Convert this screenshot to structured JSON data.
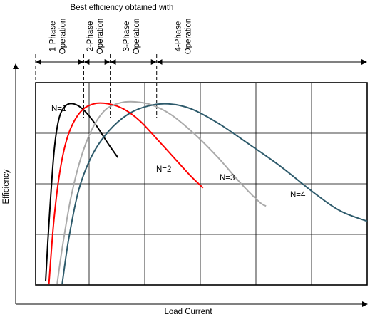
{
  "chart_data": {
    "type": "line",
    "title": "Best efficiency obtained with",
    "xlabel": "Load Current",
    "ylabel": "Efficiency",
    "xlim": [
      0,
      100
    ],
    "ylim": [
      0,
      100
    ],
    "grid": true,
    "phase_regions": [
      {
        "label": "1-Phase Operation",
        "lines": [
          "1-Phase",
          "Operation"
        ],
        "x_start": 0,
        "x_end": 14.5
      },
      {
        "label": "2-Phase Operation",
        "lines": [
          "2-Phase",
          "Operation"
        ],
        "x_start": 14.5,
        "x_end": 22.5
      },
      {
        "label": "3-Phase Operation",
        "lines": [
          "3-Phase",
          "Operation"
        ],
        "x_start": 22.5,
        "x_end": 36.5
      },
      {
        "label": "4-Phase Operation",
        "lines": [
          "4-Phase",
          "Operation"
        ],
        "x_start": 36.5,
        "x_end": 100
      }
    ],
    "series": [
      {
        "name": "N=1",
        "color": "#000000",
        "x": [
          3.0,
          4.0,
          5.5,
          7.0,
          9.0,
          11.5,
          14.5,
          18.0,
          22.0,
          24.8
        ],
        "y": [
          1.8,
          30.0,
          65.0,
          82.0,
          88.5,
          89.5,
          86.5,
          79.5,
          69.5,
          63.0
        ]
      },
      {
        "name": "N=2",
        "color": "#ff0000",
        "x": [
          4.0,
          5.5,
          7.5,
          10.0,
          13.5,
          17.5,
          22.0,
          26.5,
          31.5,
          37.5,
          42.5,
          47.0,
          50.5
        ],
        "y": [
          0.5,
          32.0,
          58.0,
          75.0,
          85.5,
          89.5,
          89.5,
          87.0,
          81.0,
          70.5,
          61.5,
          53.5,
          48.0
        ]
      },
      {
        "name": "N=3",
        "color": "#aaaaaa",
        "x": [
          6.5,
          8.0,
          10.5,
          13.5,
          17.0,
          21.0,
          25.5,
          30.0,
          35.0,
          41.0,
          48.0,
          55.0,
          62.0,
          67.5,
          69.5
        ],
        "y": [
          0.7,
          18.0,
          42.0,
          62.0,
          77.0,
          86.5,
          90.0,
          90.5,
          89.0,
          84.0,
          74.5,
          63.0,
          50.0,
          41.0,
          39.0
        ]
      },
      {
        "name": "N=4",
        "color": "#2d5a6b",
        "x": [
          8.0,
          10.0,
          13.0,
          17.0,
          22.0,
          28.0,
          34.0,
          40.0,
          47.0,
          55.0,
          64.0,
          74.0,
          84.0,
          92.0,
          100.0
        ],
        "y": [
          0.5,
          23.0,
          47.0,
          64.0,
          76.0,
          84.5,
          88.5,
          89.5,
          87.0,
          80.0,
          70.0,
          58.5,
          45.5,
          36.5,
          31.5
        ]
      }
    ]
  }
}
